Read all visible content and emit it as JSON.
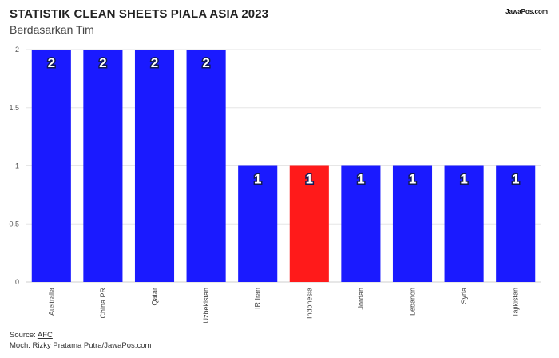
{
  "header": {
    "title": "STATISTIK CLEAN SHEETS PIALA ASIA 2023",
    "subtitle": "Berdasarkan Tim",
    "logo_text": "JawaPos.com"
  },
  "footer": {
    "source_label": "Source: ",
    "source_link": "AFC",
    "credit": "Moch. Rizky Pratama Putra/JawaPos.com"
  },
  "chart_data": {
    "type": "bar",
    "categories": [
      "Australia",
      "China PR",
      "Qatar",
      "Uzbekistan",
      "IR Iran",
      "Indonesia",
      "Jordan",
      "Lebanon",
      "Syria",
      "Tajikistan"
    ],
    "values": [
      2,
      2,
      2,
      2,
      1,
      1,
      1,
      1,
      1,
      1
    ],
    "title": "STATISTIK CLEAN SHEETS PIALA ASIA 2023",
    "subtitle": "Berdasarkan Tim",
    "ylim": [
      0,
      2
    ],
    "yticks": [
      "0",
      "0.5",
      "1",
      "1.5",
      "2"
    ],
    "grid": true,
    "colors": {
      "default": "#1a1aff",
      "highlight": "#ff1a1a",
      "highlight_category": "Indonesia"
    }
  }
}
